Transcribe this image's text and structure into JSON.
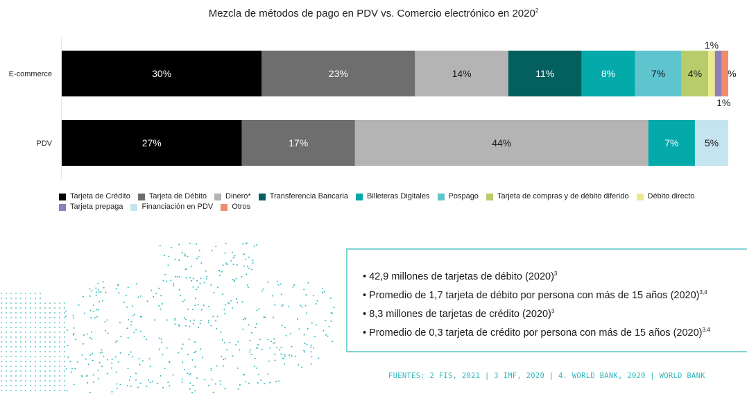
{
  "title": "Mezcla de métodos de pago en PDV vs. Comercio electrónico en 2020",
  "title_note": "2",
  "chart_data": {
    "type": "bar",
    "orientation": "horizontal",
    "stacked": true,
    "categories": [
      "E-commerce",
      "PDV"
    ],
    "series": [
      {
        "name": "Tarjeta de Crédito",
        "color": "#000000",
        "values": [
          30,
          27
        ],
        "labels": [
          "30%",
          "27%"
        ],
        "label_color": "#ffffff"
      },
      {
        "name": "Tarjeta de Débito",
        "color": "#6e6e6e",
        "values": [
          23,
          17
        ],
        "labels": [
          "23%",
          "17%"
        ],
        "label_color": "#ffffff"
      },
      {
        "name": "Dinero*",
        "color": "#b4b4b4",
        "values": [
          14,
          44
        ],
        "labels": [
          "14%",
          "44%"
        ],
        "label_color": "#1a1a1a"
      },
      {
        "name": "Transferencia Bancaria",
        "color": "#045f5f",
        "values": [
          11,
          0
        ],
        "labels": [
          "11%",
          ""
        ],
        "label_color": "#ffffff"
      },
      {
        "name": "Billeteras Digitales",
        "color": "#04a9a9",
        "values": [
          8,
          7
        ],
        "labels": [
          "8%",
          "7%"
        ],
        "label_color": "#ffffff"
      },
      {
        "name": "Pospago",
        "color": "#5ec5cf",
        "values": [
          7,
          0
        ],
        "labels": [
          "7%",
          ""
        ],
        "label_color": "#1a1a1a"
      },
      {
        "name": "Tarjeta de compras y de débito diferido",
        "color": "#b9cc6c",
        "values": [
          4,
          0
        ],
        "labels": [
          "4%",
          ""
        ],
        "label_color": "#1a1a1a"
      },
      {
        "name": "Débito directo",
        "color": "#ebe98e",
        "values": [
          1,
          0
        ],
        "labels": [
          "1%",
          ""
        ],
        "label_color": "#1a1a1a",
        "label_pos": "above"
      },
      {
        "name": "Tarjeta prepaga",
        "color": "#8d7fba",
        "values": [
          1,
          0
        ],
        "labels": [
          "1%",
          ""
        ],
        "label_color": "#1a1a1a",
        "label_pos": "right"
      },
      {
        "name": "Financiación en PDV",
        "color": "#c4e4ef",
        "values": [
          0,
          5
        ],
        "labels": [
          "",
          "5%"
        ],
        "label_color": "#1a1a1a"
      },
      {
        "name": "Otros",
        "color": "#f08c6c",
        "values": [
          1,
          0
        ],
        "labels": [
          "1%",
          ""
        ],
        "label_color": "#1a1a1a",
        "label_pos": "below"
      }
    ],
    "xlim": [
      0,
      100
    ]
  },
  "legend_rows": [
    [
      "Tarjeta de Crédito",
      "Tarjeta de Débito",
      "Dinero*",
      "Transferencia Bancaria",
      "Billeteras Digitales",
      "Pospago",
      "Tarjeta de compras y de débito diferido",
      "Débito directo"
    ],
    [
      "Tarjeta prepaga",
      "Financiación en PDV",
      "Otros"
    ]
  ],
  "info": [
    {
      "text": "• 42,9 millones de tarjetas de débito (2020)",
      "refs": "3"
    },
    {
      "text": "• Promedio de 1,7 tarjeta de débito por persona con más de 15 años (2020)",
      "refs": "3,4"
    },
    {
      "text": "• 8,3 millones de tarjetas de crédito (2020)",
      "refs": "3"
    },
    {
      "text": "• Promedio de 0,3 tarjeta de crédito por persona con más de 15 años (2020)",
      "refs": "3,4"
    }
  ],
  "sources": "FUENTES: 2 FIS, 2021 | 3 IMF, 2020 | 4. WORLD BANK, 2020 | WORLD BANK",
  "colors": {
    "accent": "#2fb6bb",
    "box_border": "#7fd3d6",
    "dots": "#2fb6bb"
  }
}
